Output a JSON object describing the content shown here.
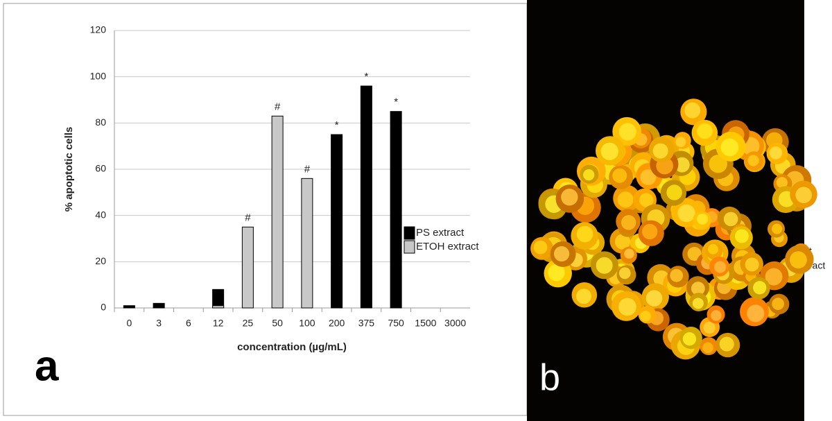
{
  "chart_data": {
    "type": "bar",
    "ylabel": "% apoptotic cells",
    "xlabel": "concentration  (µg/mL)",
    "categories": [
      "0",
      "3",
      "6",
      "12",
      "25",
      "50",
      "100",
      "200",
      "375",
      "750",
      "1500",
      "3000"
    ],
    "series": [
      {
        "name": "PS extract",
        "color": "#000000",
        "values": [
          1,
          2,
          0,
          8,
          null,
          null,
          null,
          75,
          96,
          85,
          0,
          0
        ],
        "markers": [
          null,
          null,
          null,
          null,
          null,
          null,
          null,
          "*",
          "*",
          "*",
          null,
          null
        ]
      },
      {
        "name": "ETOH extract",
        "color": "#c8c8c8",
        "values": [
          null,
          null,
          null,
          1,
          35,
          83,
          56,
          null,
          null,
          null,
          null,
          null
        ],
        "markers": [
          null,
          null,
          null,
          null,
          "#",
          "#",
          "#",
          null,
          null,
          null,
          null,
          null
        ]
      }
    ],
    "ylim": [
      0,
      120
    ],
    "yticks": [
      0,
      20,
      40,
      60,
      80,
      100,
      120
    ],
    "grid": true,
    "legend": "right",
    "panel_labels": [
      "a",
      "b"
    ],
    "overflow_text": [
      "ct",
      "xtract"
    ]
  }
}
